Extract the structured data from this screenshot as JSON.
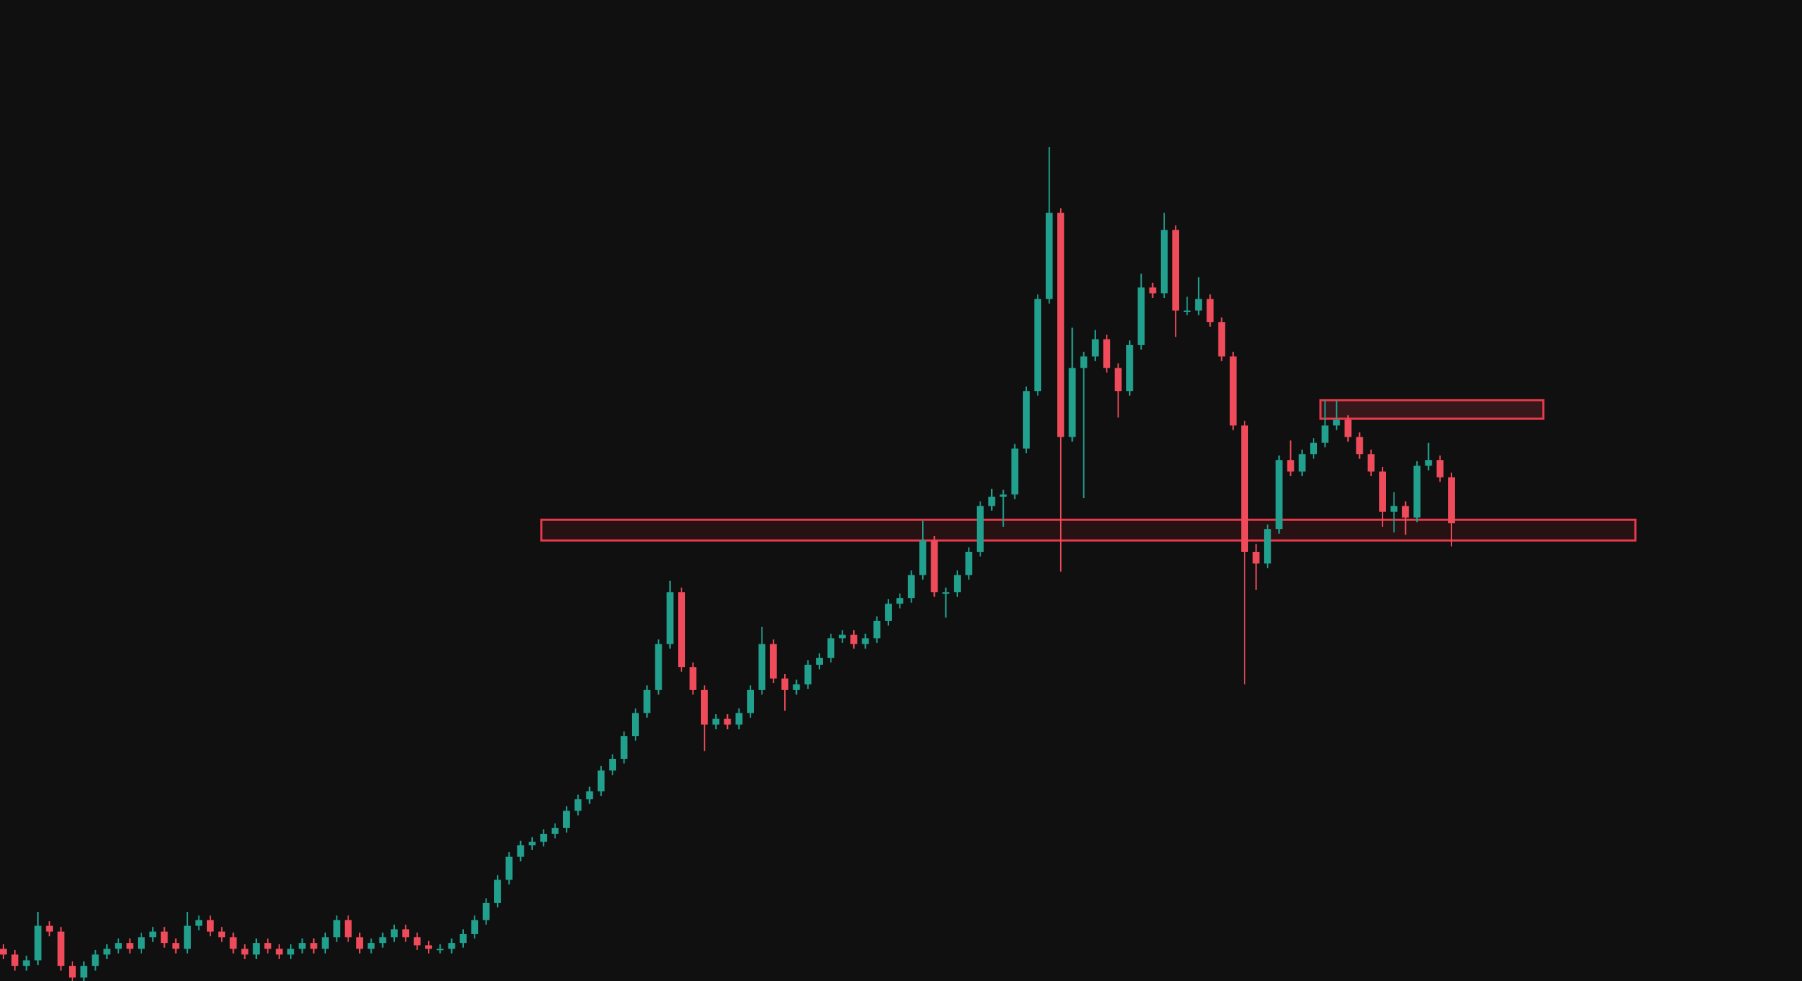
{
  "chart_data": {
    "type": "candlestick",
    "up_color": "#22a08e",
    "down_color": "#ef4b5a",
    "xlim": [
      -0.3,
      156.5
    ],
    "ylim": [
      0,
      853
    ],
    "x": [
      0,
      1,
      2,
      3,
      4,
      5,
      6,
      7,
      8,
      9,
      10,
      11,
      12,
      13,
      14,
      15,
      16,
      17,
      18,
      19,
      20,
      21,
      22,
      23,
      24,
      25,
      26,
      27,
      28,
      29,
      30,
      31,
      32,
      33,
      34,
      35,
      36,
      37,
      38,
      39,
      40,
      41,
      42,
      43,
      44,
      45,
      46,
      47,
      48,
      49,
      50,
      51,
      52,
      53,
      54,
      55,
      56,
      57,
      58,
      59,
      60,
      61,
      62,
      63,
      64,
      65,
      66,
      67,
      68,
      69,
      70,
      71,
      72,
      73,
      74,
      75,
      76,
      77,
      78,
      79,
      80,
      81,
      82,
      83,
      84,
      85,
      86,
      87,
      88,
      89,
      90,
      91,
      92,
      93,
      94,
      95,
      96,
      97,
      98,
      99,
      100,
      101,
      102,
      103,
      104,
      105,
      106,
      107,
      108,
      109,
      110,
      111,
      112,
      113,
      114,
      115,
      116,
      117,
      118,
      119,
      120,
      121,
      122,
      123,
      124,
      125,
      126
    ],
    "open": [
      28,
      23,
      13,
      18,
      48,
      43,
      13,
      3,
      13,
      23,
      28,
      33,
      28,
      38,
      43,
      33,
      28,
      48,
      53,
      43,
      38,
      28,
      23,
      33,
      28,
      23,
      28,
      33,
      28,
      38,
      53,
      38,
      28,
      33,
      38,
      45,
      38,
      31,
      28,
      28,
      33,
      41,
      53,
      68,
      88,
      108,
      118,
      121,
      128,
      133,
      148,
      158,
      165,
      183,
      193,
      213,
      233,
      253,
      293,
      338,
      273,
      253,
      223,
      228,
      223,
      233,
      253,
      293,
      263,
      253,
      258,
      275,
      281,
      298,
      301,
      293,
      298,
      313,
      328,
      333,
      353,
      383,
      338,
      338,
      353,
      373,
      413,
      421,
      423,
      463,
      513,
      593,
      668,
      473,
      533,
      543,
      558,
      533,
      513,
      553,
      603,
      598,
      653,
      583,
      583,
      593,
      573,
      543,
      483,
      373,
      363,
      393,
      453,
      443,
      458,
      468,
      483,
      488,
      473,
      458,
      443,
      408,
      413,
      403,
      448,
      453,
      438
    ],
    "high": [
      32,
      27,
      22,
      60,
      52,
      47,
      17,
      17,
      27,
      32,
      37,
      37,
      42,
      47,
      47,
      37,
      60,
      57,
      57,
      47,
      42,
      32,
      37,
      37,
      32,
      32,
      37,
      37,
      42,
      57,
      57,
      42,
      37,
      42,
      49,
      49,
      42,
      35,
      32,
      37,
      45,
      57,
      72,
      92,
      112,
      122,
      125,
      132,
      137,
      152,
      162,
      169,
      187,
      197,
      217,
      237,
      257,
      297,
      348,
      342,
      277,
      257,
      232,
      232,
      237,
      257,
      308,
      297,
      267,
      262,
      279,
      285,
      302,
      305,
      305,
      302,
      317,
      332,
      337,
      357,
      400,
      387,
      342,
      357,
      377,
      417,
      428,
      427,
      467,
      517,
      597,
      725,
      672,
      568,
      547,
      566,
      562,
      537,
      557,
      615,
      607,
      668,
      657,
      595,
      612,
      597,
      577,
      547,
      487,
      380,
      397,
      457,
      470,
      462,
      472,
      505,
      505,
      492,
      477,
      462,
      447,
      425,
      417,
      452,
      468,
      457,
      442
    ],
    "low": [
      19,
      9,
      9,
      14,
      39,
      9,
      0,
      0,
      9,
      19,
      24,
      24,
      24,
      34,
      29,
      24,
      24,
      44,
      39,
      34,
      24,
      19,
      19,
      24,
      19,
      19,
      24,
      24,
      24,
      34,
      34,
      24,
      24,
      29,
      34,
      34,
      27,
      24,
      24,
      24,
      29,
      37,
      49,
      64,
      84,
      104,
      114,
      117,
      124,
      129,
      144,
      154,
      161,
      179,
      189,
      209,
      229,
      249,
      289,
      269,
      249,
      200,
      219,
      219,
      219,
      229,
      249,
      259,
      235,
      249,
      254,
      271,
      277,
      294,
      289,
      289,
      294,
      309,
      324,
      329,
      349,
      334,
      316,
      334,
      349,
      369,
      409,
      395,
      419,
      459,
      509,
      589,
      356,
      469,
      420,
      539,
      529,
      490,
      509,
      549,
      594,
      594,
      560,
      579,
      579,
      569,
      539,
      479,
      258,
      340,
      359,
      389,
      439,
      439,
      454,
      464,
      479,
      469,
      454,
      439,
      395,
      390,
      388,
      399,
      444,
      434,
      378
    ],
    "close": [
      23,
      13,
      18,
      48,
      43,
      13,
      3,
      13,
      23,
      28,
      33,
      28,
      38,
      43,
      33,
      28,
      48,
      53,
      43,
      38,
      28,
      23,
      33,
      28,
      23,
      28,
      33,
      28,
      38,
      53,
      38,
      28,
      33,
      38,
      45,
      38,
      31,
      28,
      28,
      33,
      41,
      53,
      68,
      88,
      108,
      118,
      121,
      128,
      133,
      148,
      158,
      165,
      183,
      193,
      213,
      233,
      253,
      293,
      338,
      273,
      253,
      223,
      228,
      223,
      233,
      253,
      293,
      263,
      253,
      258,
      275,
      281,
      298,
      301,
      293,
      298,
      313,
      328,
      333,
      353,
      383,
      338,
      338,
      353,
      373,
      413,
      421,
      423,
      463,
      513,
      593,
      668,
      473,
      533,
      543,
      558,
      533,
      513,
      553,
      603,
      598,
      653,
      583,
      583,
      593,
      573,
      543,
      483,
      373,
      363,
      393,
      453,
      443,
      458,
      468,
      483,
      488,
      473,
      458,
      443,
      408,
      413,
      403,
      448,
      453,
      438,
      398
    ],
    "zones": [
      {
        "x": [
          46.8,
          142.0
        ],
        "y": [
          383,
          401
        ],
        "color": "#e83a4c",
        "fill": "#2a1214"
      },
      {
        "x": [
          114.6,
          134.0
        ],
        "y": [
          489,
          505
        ],
        "color": "#e83a4c",
        "fill": "#3d1a1d"
      }
    ]
  }
}
